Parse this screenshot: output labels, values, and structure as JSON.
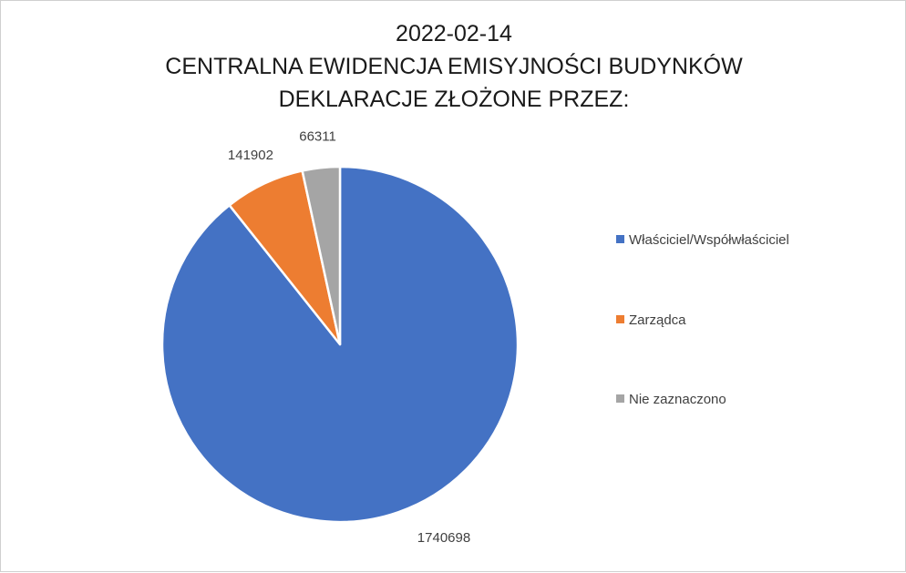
{
  "chart_data": {
    "type": "pie",
    "title": [
      "2022-02-14",
      "CENTRALNA EWIDENCJA EMISYJNOŚCI BUDYNKÓW",
      "DEKLARACJE ZŁOŻONE PRZEZ:"
    ],
    "categories": [
      "Właściciel/Współwłaściciel",
      "Zarządca",
      "Nie zaznaczono"
    ],
    "values": [
      1740698,
      141902,
      66311
    ],
    "data_labels": [
      "1740698",
      "141902",
      "66311"
    ],
    "colors": [
      "#4472c4",
      "#ed7d31",
      "#a5a5a5"
    ],
    "legend": "right",
    "start_angle": "top, clockwise"
  }
}
